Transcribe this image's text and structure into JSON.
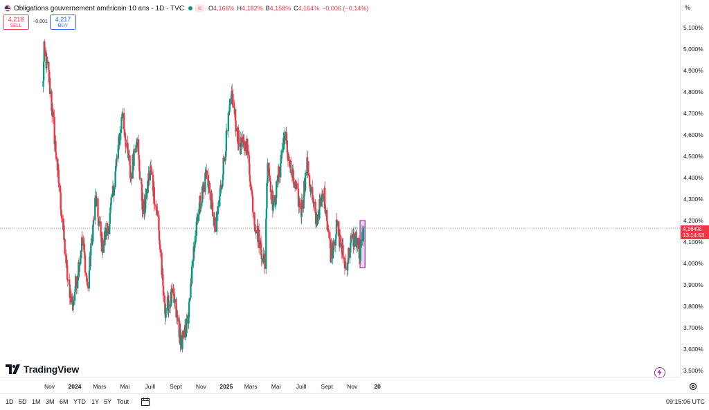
{
  "header": {
    "title": "Obligations gouvernement américain 10 ans · 1D · TVC",
    "badge": "≈",
    "ohlc": [
      {
        "key": "O",
        "value": "4,166%"
      },
      {
        "key": "H",
        "value": "4,182%"
      },
      {
        "key": "B",
        "value": "4,158%"
      },
      {
        "key": "C",
        "value": "4,164%"
      }
    ],
    "change": "−0,006 (−0,14%)"
  },
  "trade": {
    "sell_price": "4,218",
    "sell_label": "SELL",
    "spread": "−0,001",
    "buy_price": "4,217",
    "buy_label": "BUY"
  },
  "price_scale": {
    "unit": "%",
    "ticks": [
      "5,100%",
      "5,000%",
      "4,900%",
      "4,800%",
      "4,700%",
      "4,600%",
      "4,500%",
      "4,400%",
      "4,300%",
      "4,200%",
      "4,100%",
      "4,000%",
      "3,900%",
      "3,800%",
      "3,700%",
      "3,600%",
      "3,500%"
    ],
    "current_price": "4,164%",
    "countdown": "13:14:53"
  },
  "time_axis": {
    "labels": [
      {
        "text": "Nov",
        "bold": false
      },
      {
        "text": "2024",
        "bold": true
      },
      {
        "text": "Mars",
        "bold": false
      },
      {
        "text": "Mai",
        "bold": false
      },
      {
        "text": "Juill",
        "bold": false
      },
      {
        "text": "Sept",
        "bold": false
      },
      {
        "text": "Nov",
        "bold": false
      },
      {
        "text": "2025",
        "bold": true
      },
      {
        "text": "Mars",
        "bold": false
      },
      {
        "text": "Mai",
        "bold": false
      },
      {
        "text": "Juill",
        "bold": false
      },
      {
        "text": "Sept",
        "bold": false
      },
      {
        "text": "Nov",
        "bold": false
      },
      {
        "text": "20",
        "bold": true
      }
    ]
  },
  "ranges": [
    "1D",
    "5D",
    "1M",
    "3M",
    "6M",
    "YTD",
    "1Y",
    "5Y",
    "Tout"
  ],
  "clock": "09:15:06 UTC",
  "branding": {
    "name": "TradingView"
  },
  "colors": {
    "up": "#089981",
    "down": "#f23645",
    "highlight": "#9c27b0",
    "accent": "#2962ff"
  },
  "chart_data": {
    "type": "candlestick",
    "ylim": [
      3.5,
      5.1
    ],
    "last_close": 4.164,
    "anchors": [
      {
        "date": "2023-10-15",
        "value": 4.75
      },
      {
        "date": "2023-10-19",
        "value": 4.99
      },
      {
        "date": "2023-10-30",
        "value": 4.88
      },
      {
        "date": "2023-11-15",
        "value": 4.55
      },
      {
        "date": "2023-12-01",
        "value": 4.22
      },
      {
        "date": "2023-12-15",
        "value": 3.92
      },
      {
        "date": "2023-12-27",
        "value": 3.81
      },
      {
        "date": "2024-01-20",
        "value": 4.12
      },
      {
        "date": "2024-02-01",
        "value": 3.88
      },
      {
        "date": "2024-02-20",
        "value": 4.3
      },
      {
        "date": "2024-03-07",
        "value": 4.08
      },
      {
        "date": "2024-03-25",
        "value": 4.2
      },
      {
        "date": "2024-04-25",
        "value": 4.7
      },
      {
        "date": "2024-05-15",
        "value": 4.4
      },
      {
        "date": "2024-05-29",
        "value": 4.6
      },
      {
        "date": "2024-06-15",
        "value": 4.22
      },
      {
        "date": "2024-07-01",
        "value": 4.45
      },
      {
        "date": "2024-07-20",
        "value": 4.2
      },
      {
        "date": "2024-08-05",
        "value": 3.78
      },
      {
        "date": "2024-08-25",
        "value": 3.85
      },
      {
        "date": "2024-09-16",
        "value": 3.62
      },
      {
        "date": "2024-10-01",
        "value": 3.74
      },
      {
        "date": "2024-10-20",
        "value": 4.2
      },
      {
        "date": "2024-11-15",
        "value": 4.43
      },
      {
        "date": "2024-12-06",
        "value": 4.15
      },
      {
        "date": "2025-01-14",
        "value": 4.79
      },
      {
        "date": "2025-02-01",
        "value": 4.55
      },
      {
        "date": "2025-02-20",
        "value": 4.55
      },
      {
        "date": "2025-03-10",
        "value": 4.2
      },
      {
        "date": "2025-04-04",
        "value": 4.0
      },
      {
        "date": "2025-04-11",
        "value": 4.49
      },
      {
        "date": "2025-04-25",
        "value": 4.25
      },
      {
        "date": "2025-05-21",
        "value": 4.6
      },
      {
        "date": "2025-06-10",
        "value": 4.4
      },
      {
        "date": "2025-07-01",
        "value": 4.25
      },
      {
        "date": "2025-07-15",
        "value": 4.46
      },
      {
        "date": "2025-08-05",
        "value": 4.2
      },
      {
        "date": "2025-08-25",
        "value": 4.33
      },
      {
        "date": "2025-09-10",
        "value": 4.05
      },
      {
        "date": "2025-09-25",
        "value": 4.17
      },
      {
        "date": "2025-10-17",
        "value": 3.98
      },
      {
        "date": "2025-10-29",
        "value": 4.1
      },
      {
        "date": "2025-11-10",
        "value": 4.12
      },
      {
        "date": "2025-11-20",
        "value": 4.03
      },
      {
        "date": "2025-11-28",
        "value": 4.164
      }
    ],
    "highlight": {
      "start": "2025-11-20",
      "end": "2025-12-02",
      "low": 3.98,
      "high": 4.2
    }
  }
}
